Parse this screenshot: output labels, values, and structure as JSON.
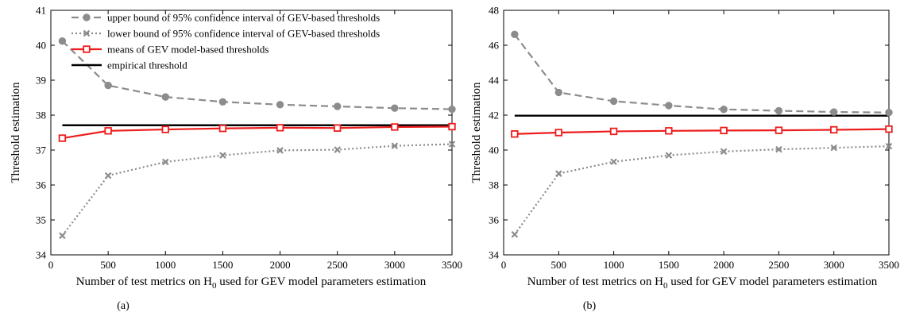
{
  "chart_data": [
    {
      "type": "line",
      "panel_label": "(a)",
      "xlabel_main": "Number of test metrics on H",
      "xlabel_sub": "0",
      "xlabel_rest": " used for GEV model parameters estimation",
      "ylabel": "Threshold estimation",
      "xlim": [
        0,
        3500
      ],
      "ylim": [
        34,
        41
      ],
      "xticks": [
        0,
        500,
        1000,
        1500,
        2000,
        2500,
        3000,
        3500
      ],
      "yticks": [
        34,
        35,
        36,
        37,
        38,
        39,
        40,
        41
      ],
      "grid": false,
      "legend_position": "top",
      "x": [
        100,
        500,
        1000,
        1500,
        2000,
        2500,
        3000,
        3500
      ],
      "series": [
        {
          "name": "upper bound of 95% confidence interval of GEV-based thresholds",
          "style": "dashed",
          "marker": "circle",
          "color": "#8c8c8c",
          "values": [
            40.12,
            38.85,
            38.52,
            38.38,
            38.3,
            38.25,
            38.2,
            38.17
          ]
        },
        {
          "name": "lower bound of 95% confidence interval of GEV-based thresholds",
          "style": "dotted",
          "marker": "x",
          "color": "#8c8c8c",
          "values": [
            34.55,
            36.27,
            36.66,
            36.85,
            36.99,
            37.01,
            37.12,
            37.17
          ]
        },
        {
          "name": "means of GEV model-based thresholds",
          "style": "solid",
          "marker": "square",
          "color": "#ee1c1c",
          "values": [
            37.34,
            37.55,
            37.59,
            37.62,
            37.64,
            37.63,
            37.66,
            37.67
          ]
        },
        {
          "name": "empirical threshold",
          "style": "solid",
          "marker": "none",
          "color": "#000000",
          "values": [
            37.71,
            37.71,
            37.71,
            37.71,
            37.71,
            37.71,
            37.71,
            37.71
          ]
        }
      ]
    },
    {
      "type": "line",
      "panel_label": "(b)",
      "xlabel_main": "Number of test metrics on H",
      "xlabel_sub": "0",
      "xlabel_rest": " used for GEV model parameters estimation",
      "ylabel": "Threshold estimation",
      "xlim": [
        0,
        3500
      ],
      "ylim": [
        34,
        48
      ],
      "xticks": [
        0,
        500,
        1000,
        1500,
        2000,
        2500,
        3000,
        3500
      ],
      "yticks": [
        34,
        36,
        38,
        40,
        42,
        44,
        46,
        48
      ],
      "grid": false,
      "x": [
        100,
        500,
        1000,
        1500,
        2000,
        2500,
        3000,
        3500
      ],
      "series": [
        {
          "name": "upper bound of 95% confidence interval of GEV-based thresholds",
          "style": "dashed",
          "marker": "circle",
          "color": "#8c8c8c",
          "values": [
            46.62,
            43.3,
            42.8,
            42.55,
            42.33,
            42.25,
            42.18,
            42.15
          ]
        },
        {
          "name": "lower bound of 95% confidence interval of GEV-based thresholds",
          "style": "dotted",
          "marker": "x",
          "color": "#8c8c8c",
          "values": [
            35.17,
            38.65,
            39.33,
            39.7,
            39.92,
            40.04,
            40.13,
            40.22
          ]
        },
        {
          "name": "means of GEV model-based thresholds",
          "style": "solid",
          "marker": "square",
          "color": "#ee1c1c",
          "values": [
            40.92,
            41.0,
            41.07,
            41.1,
            41.12,
            41.13,
            41.16,
            41.2
          ]
        },
        {
          "name": "empirical threshold",
          "style": "solid",
          "marker": "none",
          "color": "#000000",
          "values": [
            41.97,
            41.97,
            41.97,
            41.97,
            41.97,
            41.97,
            41.97,
            41.97
          ]
        }
      ]
    }
  ]
}
